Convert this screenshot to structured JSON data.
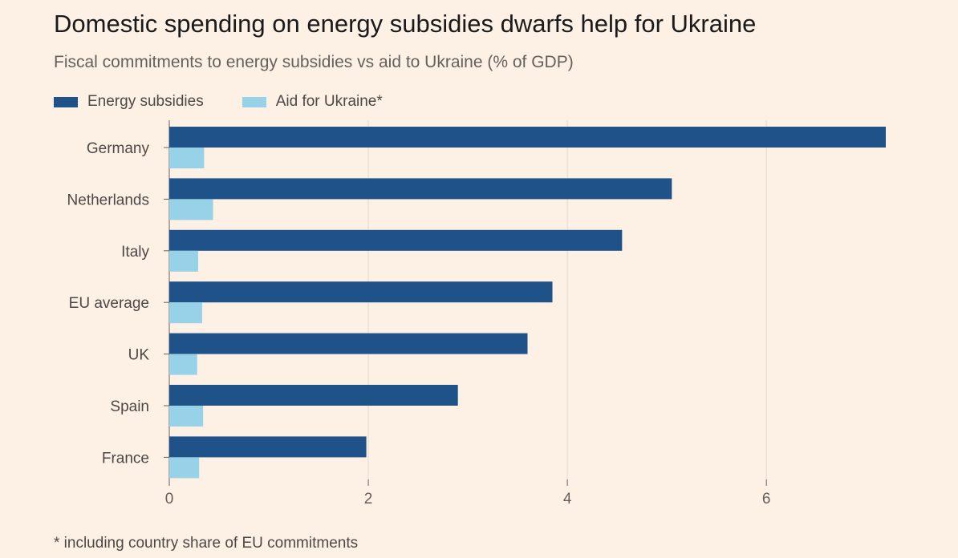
{
  "title": "Domestic spending on energy subsidies dwarfs help for Ukraine",
  "subtitle": "Fiscal commitments to energy subsidies vs aid to Ukraine (% of GDP)",
  "footnote": "* including country share of EU commitments",
  "colors": {
    "background": "#fdf1e6",
    "energy": "#1f5289",
    "aid": "#98d2e8",
    "grid": "#e5d9ce",
    "axis": "#66605c"
  },
  "chart_data": {
    "type": "bar",
    "orientation": "horizontal",
    "categories": [
      "Germany",
      "Netherlands",
      "Italy",
      "EU average",
      "UK",
      "Spain",
      "France"
    ],
    "series": [
      {
        "name": "Energy subsidies",
        "values": [
          7.2,
          5.05,
          4.55,
          3.85,
          3.6,
          2.9,
          1.98
        ]
      },
      {
        "name": "Aid for Ukraine*",
        "values": [
          0.35,
          0.44,
          0.29,
          0.33,
          0.28,
          0.34,
          0.3
        ]
      }
    ],
    "xlim": [
      0,
      7.2
    ],
    "xticks": [
      0,
      2,
      4,
      6
    ],
    "grid": true,
    "legend_position": "top-left"
  }
}
